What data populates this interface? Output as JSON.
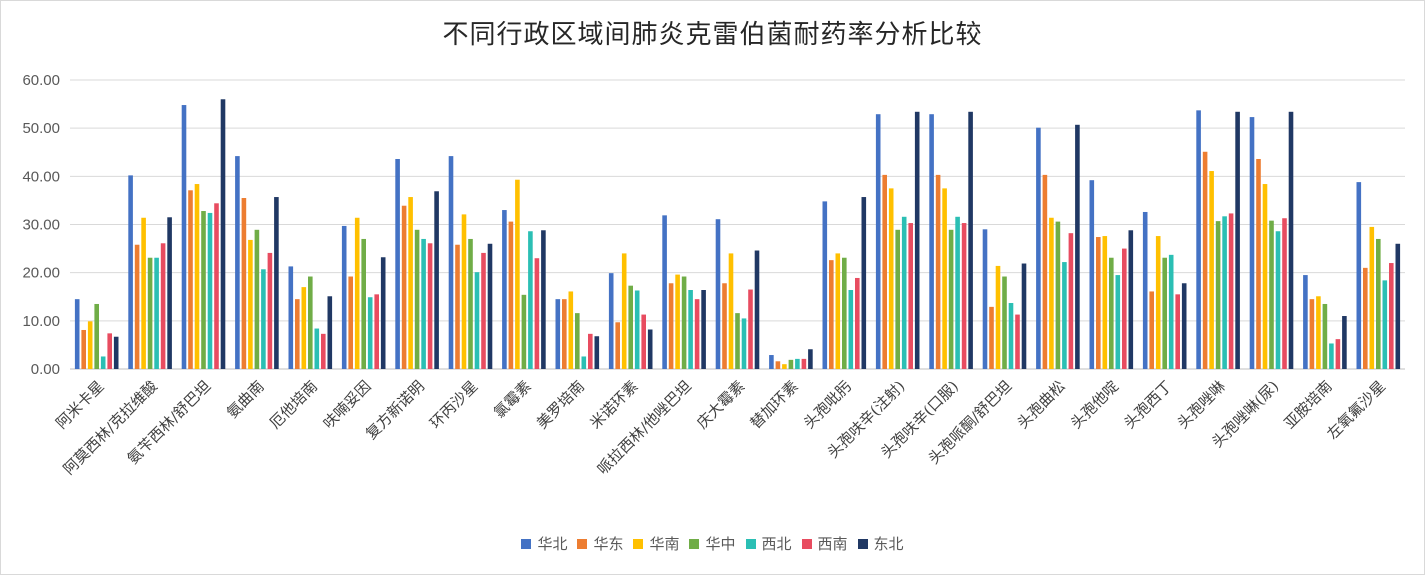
{
  "chart_data": {
    "type": "bar",
    "title": "不同行政区域间肺炎克雷伯菌耐药率分析比较",
    "xlabel": "",
    "ylabel": "",
    "ylim": [
      0,
      60
    ],
    "yticks": [
      "0.00",
      "10.00",
      "20.00",
      "30.00",
      "40.00",
      "50.00",
      "60.00"
    ],
    "grid": true,
    "legend_position": "bottom",
    "categories": [
      "阿米卡星",
      "阿莫西林/克拉维酸",
      "氨苄西林/舒巴坦",
      "氨曲南",
      "厄他培南",
      "呋喃妥因",
      "复方新诺明",
      "环丙沙星",
      "氯霉素",
      "美罗培南",
      "米诺环素",
      "哌拉西林/他唑巴坦",
      "庆大霉素",
      "替加环素",
      "头孢吡肟",
      "头孢呋辛(注射)",
      "头孢呋辛(口服)",
      "头孢哌酮/舒巴坦",
      "头孢曲松",
      "头孢他啶",
      "头孢西丁",
      "头孢唑啉",
      "头孢唑啉(尿)",
      "亚胺培南",
      "左氧氟沙星"
    ],
    "series": [
      {
        "name": "华北",
        "color": "#4472C4",
        "values": [
          14.5,
          40.2,
          54.8,
          44.2,
          21.3,
          29.7,
          43.6,
          44.2,
          33.0,
          14.5,
          19.9,
          31.9,
          31.1,
          2.9,
          34.8,
          52.9,
          52.9,
          29.0,
          50.1,
          39.2,
          32.6,
          53.7,
          52.3,
          19.5,
          38.8
        ]
      },
      {
        "name": "华东",
        "color": "#ED7D31",
        "values": [
          8.1,
          25.8,
          37.1,
          35.5,
          14.5,
          19.2,
          33.9,
          25.8,
          30.6,
          14.5,
          9.7,
          17.8,
          17.8,
          1.6,
          22.6,
          40.3,
          40.3,
          12.9,
          40.3,
          27.4,
          16.1,
          45.1,
          43.6,
          14.5,
          21.0
        ]
      },
      {
        "name": "华南",
        "color": "#FFC000",
        "values": [
          9.9,
          31.4,
          38.4,
          26.8,
          17.0,
          31.4,
          35.7,
          32.1,
          39.3,
          16.1,
          24.0,
          19.6,
          24.0,
          1.0,
          24.0,
          37.5,
          37.5,
          21.4,
          31.4,
          27.6,
          27.6,
          41.1,
          38.4,
          15.1,
          29.5
        ]
      },
      {
        "name": "华中",
        "color": "#70AD47",
        "values": [
          13.5,
          23.1,
          32.8,
          28.9,
          19.2,
          27.0,
          28.9,
          27.0,
          15.4,
          11.6,
          17.3,
          19.2,
          11.6,
          1.9,
          23.1,
          28.9,
          28.9,
          19.2,
          30.6,
          23.1,
          23.1,
          30.7,
          30.8,
          13.5,
          27.0
        ]
      },
      {
        "name": "西北",
        "color": "#2BBFB4",
        "values": [
          2.6,
          23.1,
          32.4,
          20.7,
          8.4,
          14.9,
          27.0,
          20.1,
          28.6,
          2.6,
          16.3,
          16.4,
          10.5,
          2.1,
          16.4,
          31.6,
          31.6,
          13.7,
          22.2,
          19.5,
          23.7,
          31.7,
          28.6,
          5.3,
          18.4
        ]
      },
      {
        "name": "西南",
        "color": "#E84C60",
        "values": [
          7.4,
          26.1,
          34.4,
          24.1,
          7.3,
          15.5,
          26.1,
          24.1,
          23.0,
          7.3,
          11.3,
          14.5,
          16.5,
          2.1,
          18.9,
          30.3,
          30.3,
          11.3,
          28.2,
          25.0,
          15.5,
          32.3,
          31.3,
          6.2,
          22.0
        ]
      },
      {
        "name": "东北",
        "color": "#203864",
        "values": [
          6.7,
          31.5,
          56.0,
          35.7,
          15.1,
          23.2,
          36.9,
          26.0,
          28.8,
          6.8,
          8.2,
          16.4,
          24.6,
          4.1,
          35.7,
          53.4,
          53.4,
          21.9,
          50.7,
          28.8,
          17.8,
          53.4,
          53.4,
          11.0,
          26.0
        ]
      }
    ]
  }
}
